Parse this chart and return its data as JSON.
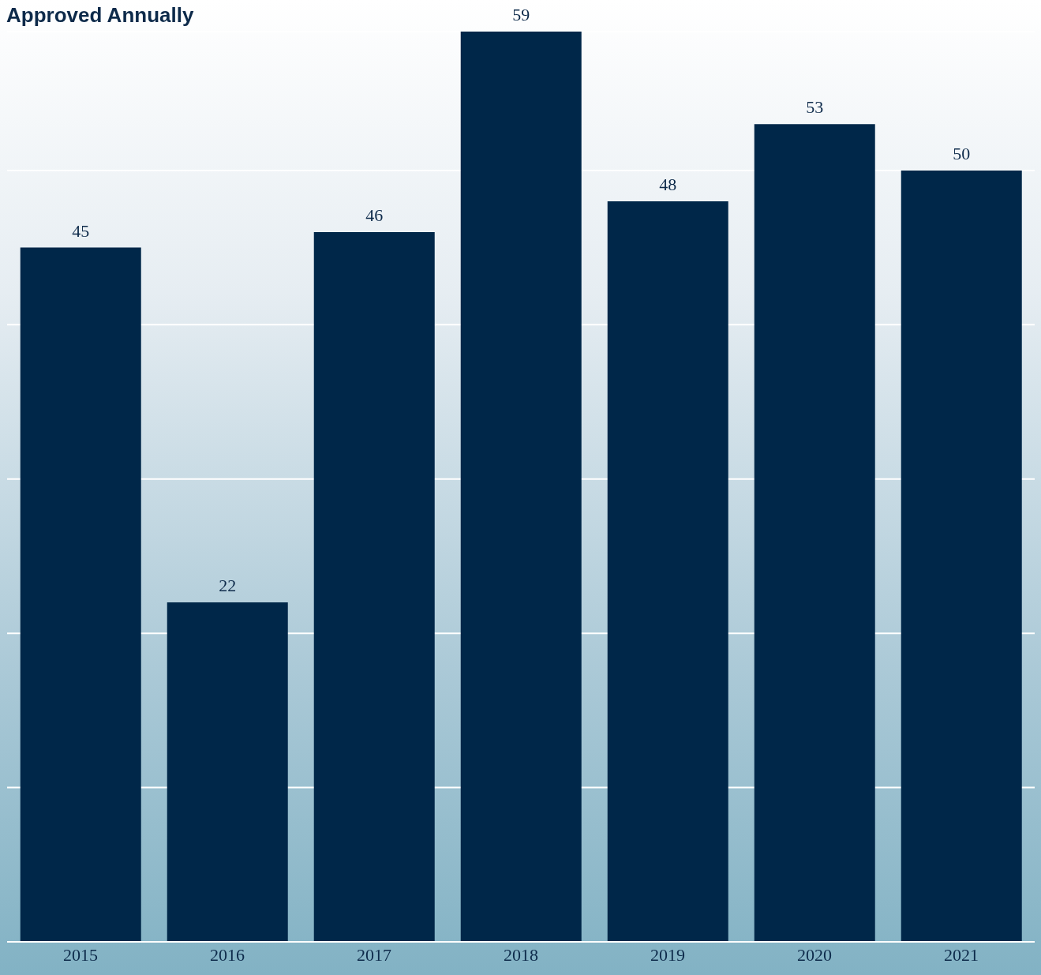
{
  "chart_data": {
    "type": "bar",
    "title": "Approved Annually",
    "categories": [
      "2015",
      "2016",
      "2017",
      "2018",
      "2019",
      "2020",
      "2021"
    ],
    "values": [
      45,
      22,
      46,
      59,
      48,
      53,
      50
    ],
    "color": "#002749",
    "grid": "y",
    "tick_labels": "x",
    "data_labels": true
  }
}
